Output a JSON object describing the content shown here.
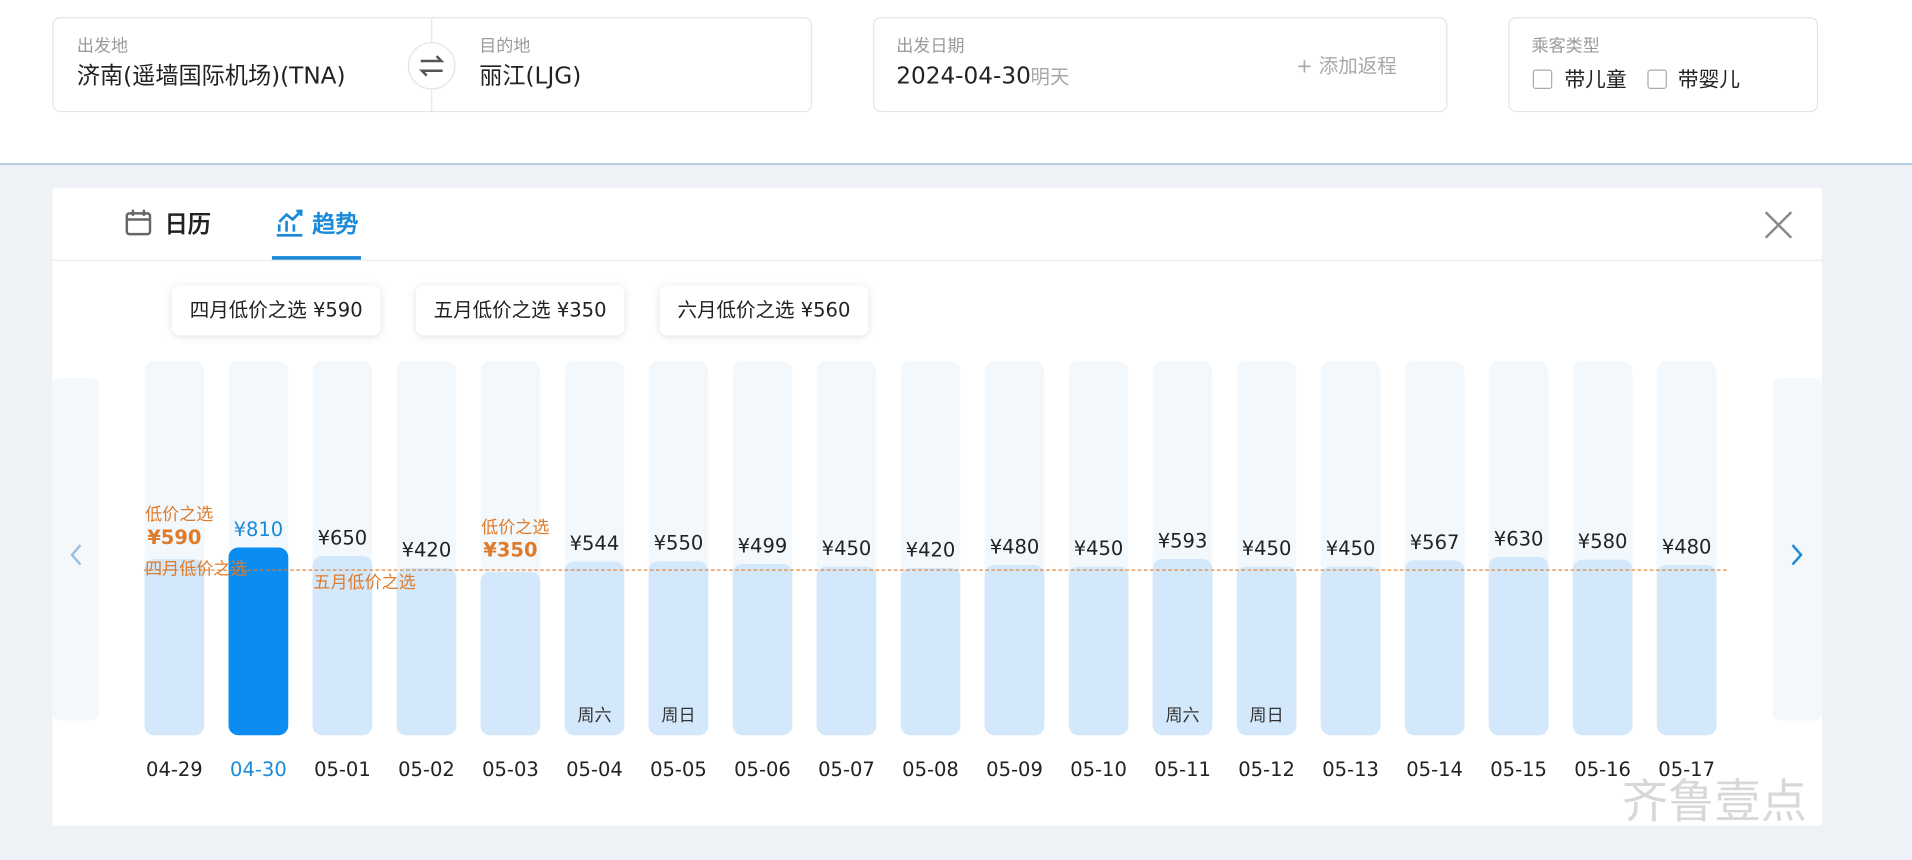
{
  "search": {
    "origin_label": "出发地",
    "origin": "济南(遥墙国际机场)(TNA)",
    "destination_label": "目的地",
    "destination": "丽江(LJG)",
    "date_label": "出发日期",
    "date": "2024-04-30",
    "date_hint": "明天",
    "add_return": "+ 添加返程",
    "passenger_label": "乘客类型",
    "passenger_options": [
      "带儿童",
      "带婴儿"
    ]
  },
  "tabs": [
    "日历",
    "趋势"
  ],
  "chart_data": {
    "type": "bar",
    "month_lows": [
      "四月低价之选 ¥590",
      "五月低价之选 ¥350",
      "六月低价之选 ¥560"
    ],
    "categories": [
      "04-29",
      "04-30",
      "05-01",
      "05-02",
      "05-03",
      "05-04",
      "05-05",
      "05-06",
      "05-07",
      "05-08",
      "05-09",
      "05-10",
      "05-11",
      "05-12",
      "05-13",
      "05-14",
      "05-15",
      "05-16",
      "05-17"
    ],
    "values": [
      590,
      810,
      650,
      420,
      350,
      544,
      550,
      499,
      450,
      420,
      480,
      450,
      593,
      450,
      450,
      567,
      630,
      580,
      480
    ],
    "value_labels": [
      "¥590",
      "¥810",
      "¥650",
      "¥420",
      "¥350",
      "¥544",
      "¥550",
      "¥499",
      "¥450",
      "¥420",
      "¥480",
      "¥450",
      "¥593",
      "¥450",
      "¥450",
      "¥567",
      "¥630",
      "¥580",
      "¥480"
    ],
    "low_choice_labels": [
      "低价之选",
      null,
      null,
      null,
      "低价之选",
      null,
      null,
      null,
      null,
      null,
      null,
      null,
      null,
      null,
      null,
      null,
      null,
      null,
      null
    ],
    "weekday_labels": [
      null,
      null,
      null,
      null,
      null,
      "周六",
      "周日",
      null,
      null,
      null,
      null,
      null,
      "周六",
      "周日",
      null,
      null,
      null,
      null,
      null
    ],
    "line_labels": [
      "四月低价之选",
      "五月低价之选"
    ],
    "color": "#d3e8fb",
    "selected_color": "#0a8cf0",
    "selected_index": 1
  },
  "watermark": "齐鲁壹点"
}
